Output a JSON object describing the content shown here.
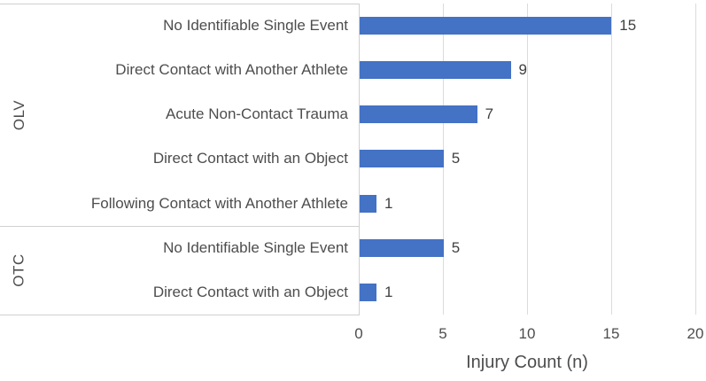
{
  "chart_data": {
    "type": "bar",
    "orientation": "horizontal",
    "xlabel": "Injury Count (n)",
    "ylabel": "",
    "xlim": [
      0,
      20
    ],
    "xticks": [
      0,
      5,
      10,
      15,
      20
    ],
    "grid": true,
    "legend": "none",
    "bar_color": "#4472c4",
    "gridline_color": "#dbdbdb",
    "text_color": "#4d4d4d",
    "groups": [
      {
        "name": "OLV",
        "row_count": 5
      },
      {
        "name": "OTC",
        "row_count": 2
      }
    ],
    "rows": [
      {
        "group": "OLV",
        "label": "No Identifiable Single Event",
        "value": 15
      },
      {
        "group": "OLV",
        "label": "Direct Contact with Another Athlete",
        "value": 9
      },
      {
        "group": "OLV",
        "label": "Acute Non-Contact Trauma",
        "value": 7
      },
      {
        "group": "OLV",
        "label": "Direct Contact with an Object",
        "value": 5
      },
      {
        "group": "OLV",
        "label": "Following Contact with Another Athlete",
        "value": 1
      },
      {
        "group": "OTC",
        "label": "No Identifiable Single Event",
        "value": 5
      },
      {
        "group": "OTC",
        "label": "Direct Contact with an Object",
        "value": 1
      }
    ]
  }
}
